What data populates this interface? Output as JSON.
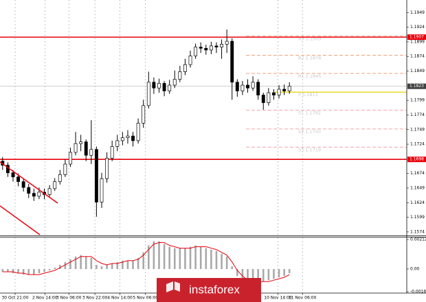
{
  "chart_data": {
    "type": "candlestick",
    "open": [
      1.1695,
      1.1688,
      1.1675,
      1.1668,
      1.166,
      1.165,
      1.164,
      1.1635,
      1.1642,
      1.1638,
      1.1648,
      1.166,
      1.1672,
      1.169,
      1.171,
      1.1725,
      1.1728,
      1.1705,
      1.1715,
      1.1625,
      1.1665,
      1.17,
      1.172,
      1.173,
      1.1735,
      1.1738,
      1.173,
      1.176,
      1.179,
      1.183,
      1.182,
      1.1828,
      1.1815,
      1.1825,
      1.1835,
      1.1848,
      1.186,
      1.1875,
      1.189,
      1.1888,
      1.1885,
      1.1892,
      1.189,
      1.1895,
      1.19,
      1.183,
      1.1815,
      1.1825,
      1.182,
      1.183,
      1.1808,
      1.1795,
      1.1812,
      1.1808,
      1.1818,
      1.1815
    ],
    "high": [
      1.1702,
      1.1693,
      1.168,
      1.1674,
      1.1665,
      1.1656,
      1.1648,
      1.165,
      1.1648,
      1.1654,
      1.1666,
      1.168,
      1.1698,
      1.1718,
      1.1745,
      1.174,
      1.1732,
      1.1765,
      1.172,
      1.1675,
      1.171,
      1.173,
      1.174,
      1.1745,
      1.1748,
      1.1745,
      1.1768,
      1.18,
      1.1848,
      1.1838,
      1.1836,
      1.1832,
      1.1834,
      1.185,
      1.1858,
      1.187,
      1.1884,
      1.1896,
      1.1898,
      1.1894,
      1.1899,
      1.1898,
      1.1903,
      1.192,
      1.1905,
      1.1835,
      1.1832,
      1.1835,
      1.184,
      1.1835,
      1.1812,
      1.182,
      1.1818,
      1.1825,
      1.1826,
      1.183
    ],
    "low": [
      1.168,
      1.1668,
      1.166,
      1.1652,
      1.1643,
      1.1632,
      1.1627,
      1.163,
      1.163,
      1.1634,
      1.1644,
      1.1655,
      1.1668,
      1.1685,
      1.1705,
      1.1712,
      1.1695,
      1.169,
      1.16,
      1.1615,
      1.1658,
      1.1695,
      1.1712,
      1.1722,
      1.1725,
      1.172,
      1.1725,
      1.1752,
      1.1785,
      1.181,
      1.1812,
      1.1806,
      1.181,
      1.182,
      1.183,
      1.1842,
      1.1855,
      1.187,
      1.188,
      1.1877,
      1.1878,
      1.188,
      1.187,
      1.188,
      1.18,
      1.1805,
      1.1808,
      1.1812,
      1.1815,
      1.18,
      1.1783,
      1.179,
      1.18,
      1.1802,
      1.1808,
      1.181
    ],
    "close": [
      1.1688,
      1.1675,
      1.1668,
      1.166,
      1.165,
      1.164,
      1.1635,
      1.1642,
      1.1638,
      1.1648,
      1.166,
      1.1672,
      1.169,
      1.171,
      1.1725,
      1.1728,
      1.1705,
      1.1715,
      1.1625,
      1.1665,
      1.17,
      1.172,
      1.173,
      1.1735,
      1.1738,
      1.173,
      1.176,
      1.179,
      1.183,
      1.182,
      1.1828,
      1.1815,
      1.1825,
      1.1835,
      1.1848,
      1.186,
      1.1875,
      1.189,
      1.1888,
      1.1885,
      1.1892,
      1.189,
      1.1895,
      1.19,
      1.183,
      1.1815,
      1.1825,
      1.182,
      1.183,
      1.1808,
      1.1795,
      1.1812,
      1.1808,
      1.1818,
      1.1815,
      1.1823
    ],
    "up_color": "#ffffff",
    "down_color": "#000000",
    "ylim": [
      1.1568,
      1.1967
    ],
    "yticks": [
      1.1574,
      1.1599,
      1.1624,
      1.1649,
      1.1674,
      1.1724,
      1.1749,
      1.1774,
      1.1799,
      1.1849,
      1.1874,
      1.1899,
      1.1924,
      1.1949
    ],
    "xlim": [
      0,
      78
    ],
    "xticks": [
      {
        "value": 2.9,
        "label": "30 Oct 21:00"
      },
      {
        "value": 8.6,
        "label": "2 Nov 14:00"
      },
      {
        "value": 13.2,
        "label": "3 Nov 06:00"
      },
      {
        "value": 18.2,
        "label": "3 Nov 22:00"
      },
      {
        "value": 23.0,
        "label": "4 Nov 14:00"
      },
      {
        "value": 27.9,
        "label": "5 Nov 06:00"
      },
      {
        "value": 53.3,
        "label": "10 Nov 14:00"
      },
      {
        "value": 58.0,
        "label": "11 Nov 06:00"
      }
    ],
    "grid": true,
    "levels": [
      {
        "value": 1.1907,
        "color": "#e8000b"
      },
      {
        "value": 1.1698,
        "color": "#e8000b"
      }
    ],
    "current_price": {
      "value": 1.1823,
      "color": "#404040"
    },
    "pivots": [
      {
        "label": "R3 1.1909",
        "value": 1.1909,
        "color": "#f0a27a"
      },
      {
        "label": "R2 1.1876",
        "value": 1.1876,
        "color": "#f0a27a"
      },
      {
        "label": "R1 1.1845",
        "value": 1.1845,
        "color": "#f0a27a"
      },
      {
        "label": "P 1.1813",
        "value": 1.1813,
        "color": "#e8d200"
      },
      {
        "label": "S1 1.1782",
        "value": 1.1782,
        "color": "#f2a3a8"
      },
      {
        "label": "S2 1.1750",
        "value": 1.175,
        "color": "#f2a3a8"
      },
      {
        "label": "S3 1.1719",
        "value": 1.1719,
        "color": "#f2a3a8"
      }
    ],
    "watermark": "instaforex",
    "indicator": {
      "type": "macd",
      "histogram": [
        -0.0002,
        -0.0002,
        -0.0003,
        -0.0003,
        -0.0004,
        -0.0004,
        -0.0004,
        -0.0003,
        -0.0002,
        -0.0001,
        0.0001,
        0.0003,
        0.0005,
        0.0007,
        0.0009,
        0.001,
        0.0009,
        0.0008,
        0.0003,
        0.0002,
        0.0003,
        0.0004,
        0.0005,
        0.0006,
        0.0006,
        0.0006,
        0.0008,
        0.0012,
        0.0017,
        0.002,
        0.002,
        0.0018,
        0.0016,
        0.0015,
        0.0015,
        0.0015,
        0.0016,
        0.0017,
        0.0016,
        0.0015,
        0.0014,
        0.0013,
        0.0011,
        0.0009,
        0.0002,
        -0.0005,
        -0.0008,
        -0.0009,
        -0.0009,
        -0.0009,
        -0.0009,
        -0.0008,
        -0.0007,
        -0.0006,
        -0.0005,
        -0.0003
      ],
      "signal": [
        -0.0002,
        -0.0002,
        -0.0002,
        -0.0003,
        -0.0003,
        -0.0004,
        -0.0004,
        -0.0004,
        -0.0003,
        -0.0002,
        -0.0001,
        0.0001,
        0.0003,
        0.0005,
        0.0007,
        0.0009,
        0.0009,
        0.0009,
        0.0006,
        0.0004,
        0.0003,
        0.0004,
        0.0004,
        0.0005,
        0.0006,
        0.0006,
        0.0007,
        0.001,
        0.0014,
        0.0018,
        0.0019,
        0.0019,
        0.0017,
        0.0016,
        0.0015,
        0.0015,
        0.0015,
        0.0016,
        0.0016,
        0.0016,
        0.0015,
        0.0014,
        0.0012,
        0.001,
        0.0005,
        -0.0001,
        -0.0005,
        -0.0008,
        -0.0009,
        -0.0009,
        -0.0009,
        -0.0009,
        -0.0008,
        -0.0007,
        -0.0006,
        -0.0004
      ],
      "color": "#a8a8a8",
      "signal_color": "#e8000b",
      "ylim": [
        -0.00163,
        0.00212
      ],
      "yticks": [
        0.00212,
        {
          "value": 0,
          "label": "0.00"
        },
        -0.00163
      ]
    }
  }
}
